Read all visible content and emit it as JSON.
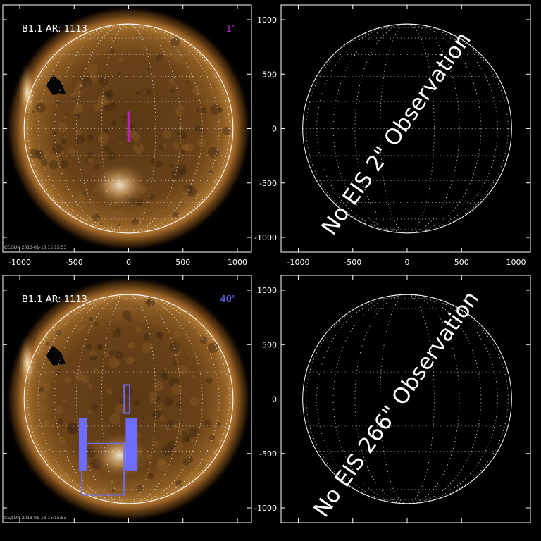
{
  "panels": [
    {
      "id": "top-left",
      "type": "sun-image",
      "label": "B1.1  AR: 1113",
      "scale_label": "1\"",
      "scale_color": "#b020c0",
      "footer": "CE/SUN 2013-01-13 15:15:53",
      "xaxis_ticks": [
        "-1000",
        "-500",
        "0",
        "500",
        "1000"
      ],
      "yaxis_ticks": [],
      "boxes": [
        {
          "name": "eis-slit",
          "color": "#c020c0",
          "x": [
            -5,
            5
          ],
          "y": [
            -120,
            150
          ]
        }
      ]
    },
    {
      "id": "top-right",
      "type": "empty-grid",
      "message": "No EIS 2\" Observation",
      "xaxis_ticks": [
        "-1000",
        "-500",
        "0",
        "500",
        "1000"
      ],
      "yaxis_ticks": [
        "1000",
        "500",
        "0",
        "-500",
        "-1000"
      ]
    },
    {
      "id": "bottom-left",
      "type": "sun-image",
      "label": "B1.1  AR: 1113",
      "scale_label": "40\"",
      "scale_color": "#6d6dff",
      "footer": "CE/SUN 2013-01-13 15:15:53",
      "xaxis_ticks": [],
      "yaxis_ticks": [],
      "boxes": [
        {
          "name": "small-raster-box",
          "color": "#6d6dff",
          "x": [
            -40,
            10
          ],
          "y": [
            -130,
            130
          ]
        },
        {
          "name": "large-raster-box",
          "color": "#6d6dff",
          "x": [
            -430,
            -40
          ],
          "y": [
            -880,
            -410
          ]
        },
        {
          "name": "raster-box-left-bar",
          "color": "#6d6dff",
          "x": [
            -450,
            -390
          ],
          "y": [
            -650,
            -180
          ]
        },
        {
          "name": "raster-box-right-bar",
          "color": "#6d6dff",
          "x": [
            -20,
            70
          ],
          "y": [
            -650,
            -180
          ]
        }
      ]
    },
    {
      "id": "bottom-right",
      "type": "empty-grid",
      "message": "No EIS 266\" Observation",
      "xaxis_ticks": [],
      "yaxis_ticks": [
        "1000",
        "500",
        "0",
        "-500",
        "-1000"
      ]
    }
  ]
}
